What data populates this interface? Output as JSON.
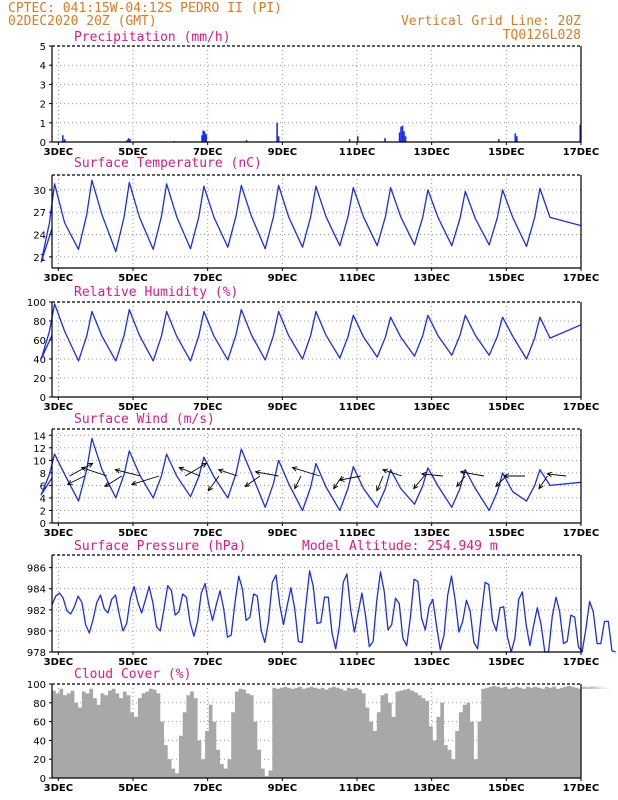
{
  "header": {
    "line1": "CPTEC:  041:15W-04:12S  PEDRO II (PI)",
    "line2": "02DEC2020 20Z (GMT)",
    "grid_note": "Vertical Grid Line: 20Z",
    "code": "TQ0126L028"
  },
  "colors": {
    "header": "#e07a22",
    "titles": "#e0188a",
    "series": "#1a2cf0",
    "cloud": "#a8a8a8",
    "arrows": "#000000"
  },
  "chart_data": [
    {
      "type": "bar",
      "title": "Precipitation (mm/h)",
      "xlabel": "",
      "ylabel": "",
      "x_range": [
        2.83,
        17.0
      ],
      "ylim": [
        0,
        5
      ],
      "yticks": [
        "0",
        "1",
        "2",
        "3",
        "4",
        "5"
      ],
      "xticks": [
        "3DEC",
        "5DEC",
        "7DEC",
        "9DEC",
        "11DEC",
        "13DEC",
        "15DEC",
        "17DEC"
      ],
      "grid": true,
      "bars": [
        {
          "x": 3.12,
          "value": 0.35
        },
        {
          "x": 3.17,
          "value": 0.15
        },
        {
          "x": 4.84,
          "value": 0.1
        },
        {
          "x": 4.88,
          "value": 0.2
        },
        {
          "x": 4.92,
          "value": 0.15
        },
        {
          "x": 6.1,
          "value": 0.05
        },
        {
          "x": 6.85,
          "value": 0.35
        },
        {
          "x": 6.88,
          "value": 0.6
        },
        {
          "x": 6.92,
          "value": 0.55
        },
        {
          "x": 6.96,
          "value": 0.4
        },
        {
          "x": 8.04,
          "value": 0.1
        },
        {
          "x": 8.86,
          "value": 1.0
        },
        {
          "x": 8.9,
          "value": 0.3
        },
        {
          "x": 10.8,
          "value": 0.15
        },
        {
          "x": 11.02,
          "value": 0.3
        },
        {
          "x": 11.75,
          "value": 0.2
        },
        {
          "x": 12.14,
          "value": 0.5
        },
        {
          "x": 12.18,
          "value": 0.8
        },
        {
          "x": 12.22,
          "value": 0.85
        },
        {
          "x": 12.26,
          "value": 0.55
        },
        {
          "x": 12.3,
          "value": 0.3
        },
        {
          "x": 14.8,
          "value": 0.15
        },
        {
          "x": 15.24,
          "value": 0.45
        },
        {
          "x": 15.28,
          "value": 0.3
        },
        {
          "x": 16.98,
          "value": 0.9
        }
      ]
    },
    {
      "type": "line",
      "title": "Surface Temperature (nC)",
      "xlabel": "",
      "ylabel": "",
      "x_range": [
        2.83,
        17.0
      ],
      "ylim": [
        19.5,
        32
      ],
      "yticks": [
        "21",
        "24",
        "27",
        "30"
      ],
      "xticks": [
        "3DEC",
        "5DEC",
        "7DEC",
        "9DEC",
        "11DEC",
        "13DEC",
        "15DEC",
        "17DEC"
      ],
      "grid": true,
      "daily": {
        "first_day": 3,
        "days": 14,
        "max": [
          30.8,
          31.3,
          31.0,
          30.8,
          30.5,
          30.6,
          30.6,
          30.5,
          30.3,
          30.3,
          30.0,
          29.8,
          30.0,
          30.2
        ],
        "min": [
          20.3,
          22.0,
          21.7,
          22.0,
          22.1,
          22.3,
          22.1,
          22.3,
          22.5,
          22.5,
          22.6,
          22.5,
          22.6,
          22.4
        ]
      },
      "start_value": 24.8,
      "end_value": 25.2
    },
    {
      "type": "line",
      "title": "Relative Humidity (%)",
      "xlabel": "",
      "ylabel": "",
      "x_range": [
        2.83,
        17.0
      ],
      "ylim": [
        0,
        100
      ],
      "yticks": [
        "0",
        "20",
        "40",
        "60",
        "80",
        "100"
      ],
      "xticks": [
        "3DEC",
        "5DEC",
        "7DEC",
        "9DEC",
        "11DEC",
        "13DEC",
        "15DEC",
        "17DEC"
      ],
      "grid": true,
      "daily": {
        "first_day": 3,
        "days": 14,
        "max": [
          98,
          90,
          92,
          90,
          90,
          92,
          90,
          90,
          86,
          84,
          86,
          86,
          84,
          84
        ],
        "min": [
          40,
          38,
          38,
          38,
          38,
          39,
          39,
          40,
          41,
          42,
          43,
          44,
          44,
          40
        ]
      },
      "start_value": 65,
      "end_value": 76
    },
    {
      "type": "line",
      "title": "Surface Wind (m/s)",
      "xlabel": "",
      "ylabel": "",
      "x_range": [
        2.83,
        17.0
      ],
      "ylim": [
        0,
        15
      ],
      "yticks": [
        "0",
        "2",
        "4",
        "6",
        "8",
        "10",
        "12",
        "14"
      ],
      "xticks": [
        "3DEC",
        "5DEC",
        "7DEC",
        "9DEC",
        "11DEC",
        "13DEC",
        "15DEC",
        "17DEC"
      ],
      "grid": true,
      "daily": {
        "first_day": 3,
        "days": 14,
        "max": [
          11.0,
          13.5,
          11.5,
          11.0,
          10.5,
          11.8,
          10.0,
          9.5,
          9.0,
          8.5,
          8.8,
          8.5,
          8.0,
          8.5
        ],
        "min": [
          4.5,
          3.5,
          4.0,
          4.0,
          4.2,
          4.0,
          2.5,
          2.0,
          2.0,
          2.5,
          3.0,
          2.5,
          2.0,
          3.5
        ]
      },
      "start_value": 7.2,
      "end_value": 6.5,
      "vectors": [
        {
          "x": 3.3,
          "u": 5.5,
          "v": 3.0
        },
        {
          "x": 3.7,
          "u": -4.0,
          "v": -2.0
        },
        {
          "x": 4.3,
          "u": -6.0,
          "v": 2.0
        },
        {
          "x": 4.7,
          "u": -4.0,
          "v": -2.5
        },
        {
          "x": 5.2,
          "u": -6.0,
          "v": 1.5
        },
        {
          "x": 5.7,
          "u": -6.5,
          "v": -2.0
        },
        {
          "x": 6.4,
          "u": 5.0,
          "v": 3.0
        },
        {
          "x": 6.8,
          "u": -5.0,
          "v": 2.0
        },
        {
          "x": 7.3,
          "u": -2.5,
          "v": -3.5
        },
        {
          "x": 7.8,
          "u": -4.5,
          "v": 1.5
        },
        {
          "x": 8.4,
          "u": -3.5,
          "v": -2.5
        },
        {
          "x": 8.9,
          "u": -5.5,
          "v": 1.0
        },
        {
          "x": 9.5,
          "u": -1.5,
          "v": -3.0
        },
        {
          "x": 10.0,
          "u": -6.5,
          "v": 2.0
        },
        {
          "x": 10.6,
          "u": -2.0,
          "v": -3.0
        },
        {
          "x": 11.1,
          "u": -5.0,
          "v": -1.0
        },
        {
          "x": 11.7,
          "u": -1.5,
          "v": -3.5
        },
        {
          "x": 12.2,
          "u": -4.5,
          "v": 1.5
        },
        {
          "x": 12.8,
          "u": -2.5,
          "v": -3.0
        },
        {
          "x": 13.3,
          "u": -5.0,
          "v": 0.5
        },
        {
          "x": 13.9,
          "u": -2.0,
          "v": -2.5
        },
        {
          "x": 14.4,
          "u": -5.5,
          "v": 1.0
        },
        {
          "x": 15.0,
          "u": -2.5,
          "v": -2.5
        },
        {
          "x": 15.5,
          "u": -5.0,
          "v": 0.0
        },
        {
          "x": 16.1,
          "u": -2.0,
          "v": -3.0
        },
        {
          "x": 16.6,
          "u": -4.5,
          "v": 0.5
        }
      ]
    },
    {
      "type": "line",
      "title": "Surface Pressure (hPa)",
      "annotation": "Model Altitude: 254.949 m",
      "xlabel": "",
      "ylabel": "",
      "x_range": [
        2.83,
        17.0
      ],
      "ylim": [
        978,
        987.2
      ],
      "yticks": [
        "978",
        "980",
        "982",
        "984",
        "986"
      ],
      "xticks": [
        "3DEC",
        "5DEC",
        "7DEC",
        "9DEC",
        "11DEC",
        "13DEC",
        "15DEC",
        "17DEC"
      ],
      "grid": true,
      "hourly_step": 0.1,
      "values": [
        982.5,
        983.3,
        983.6,
        983.1,
        981.9,
        981.6,
        982.3,
        983.3,
        982.7,
        980.6,
        979.8,
        981.1,
        982.7,
        983.4,
        982.1,
        981.7,
        983.0,
        983.4,
        981.6,
        980.0,
        980.7,
        983.1,
        984.2,
        982.7,
        981.7,
        982.9,
        984.2,
        982.7,
        980.4,
        980.0,
        982.1,
        984.3,
        983.8,
        981.5,
        981.8,
        983.5,
        983.2,
        980.8,
        979.5,
        980.9,
        983.6,
        984.5,
        982.5,
        981.0,
        982.5,
        983.8,
        982.1,
        979.4,
        979.6,
        982.6,
        985.2,
        984.0,
        981.0,
        981.3,
        983.5,
        983.3,
        980.1,
        978.9,
        980.9,
        984.6,
        985.3,
        982.5,
        980.6,
        982.4,
        984.1,
        982.1,
        979.0,
        978.9,
        982.5,
        985.7,
        984.2,
        980.7,
        980.8,
        983.2,
        983.2,
        979.8,
        978.3,
        980.5,
        984.6,
        985.4,
        982.0,
        979.9,
        981.7,
        983.6,
        981.4,
        978.5,
        979.0,
        982.9,
        985.6,
        983.7,
        980.1,
        980.6,
        983.1,
        982.6,
        979.3,
        978.6,
        981.3,
        984.9,
        984.7,
        981.2,
        980.1,
        982.3,
        983.0,
        980.5,
        978.2,
        979.6,
        983.4,
        985.2,
        982.9,
        979.9,
        980.9,
        982.9,
        981.9,
        978.9,
        978.3,
        981.5,
        984.6,
        984.4,
        981.0,
        980.0,
        982.2,
        982.3,
        979.4,
        977.4,
        979.3,
        983.0,
        983.7,
        980.6,
        978.6,
        980.5,
        982.2,
        980.6,
        977.7,
        977.9,
        981.4,
        983.2,
        981.8,
        978.8,
        979.0,
        981.5,
        981.3,
        978.5,
        977.3,
        980.2,
        982.8,
        981.8,
        978.8,
        978.8,
        980.9,
        980.9,
        978.1,
        977.0
      ]
    },
    {
      "type": "area",
      "title": "Cloud Cover (%)",
      "xlabel": "",
      "ylabel": "",
      "x_range": [
        2.83,
        17.0
      ],
      "ylim": [
        0,
        100
      ],
      "yticks": [
        "0",
        "20",
        "40",
        "60",
        "80",
        "100"
      ],
      "xticks": [
        "3DEC",
        "5DEC",
        "7DEC",
        "9DEC",
        "11DEC",
        "13DEC",
        "15DEC",
        "17DEC"
      ],
      "grid": true,
      "hourly_step": 0.1,
      "values": [
        93,
        90,
        95,
        88,
        90,
        93,
        80,
        75,
        92,
        90,
        95,
        85,
        78,
        90,
        88,
        93,
        95,
        90,
        85,
        92,
        88,
        70,
        65,
        85,
        90,
        92,
        95,
        94,
        90,
        60,
        35,
        20,
        10,
        5,
        45,
        70,
        88,
        92,
        85,
        40,
        20,
        50,
        78,
        60,
        30,
        15,
        10,
        20,
        70,
        92,
        95,
        94,
        90,
        88,
        60,
        30,
        10,
        2,
        8,
        96,
        95,
        96,
        97,
        96,
        95,
        96,
        97,
        95,
        96,
        97,
        96,
        95,
        96,
        94,
        96,
        97,
        96,
        95,
        93,
        96,
        95,
        96,
        94,
        90,
        75,
        60,
        50,
        70,
        88,
        90,
        80,
        65,
        92,
        93,
        94,
        95,
        93,
        91,
        88,
        85,
        82,
        55,
        40,
        65,
        80,
        35,
        30,
        20,
        50,
        70,
        78,
        80,
        60,
        20,
        60,
        95,
        96,
        97,
        98,
        97,
        96,
        97,
        95,
        96,
        97,
        96,
        95,
        97,
        96,
        97,
        96,
        95,
        97,
        96,
        97,
        95,
        96,
        97,
        98,
        97,
        96,
        95,
        96,
        97,
        96,
        95,
        97,
        96,
        97,
        96,
        95
      ]
    }
  ]
}
